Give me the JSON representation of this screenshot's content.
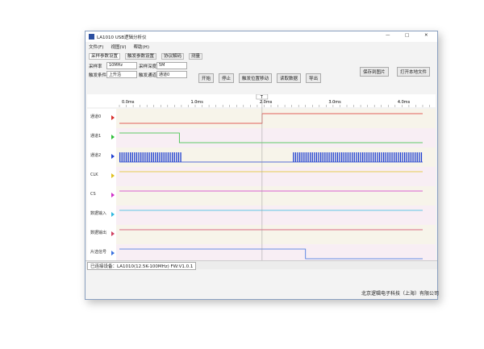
{
  "window": {
    "title": "LA1010 USB逻辑分析仪",
    "controls": [
      "—",
      "□",
      "✕"
    ]
  },
  "menu": [
    "文件(F)",
    "视图(V)",
    "帮助(H)"
  ],
  "toolbar": {
    "tabs": [
      "采样参数设置",
      "触发参数设置",
      "协议解码",
      "测量"
    ],
    "fields": [
      {
        "label": "采样率",
        "value": "10MHz"
      },
      {
        "label": "采样深度",
        "value": "5M"
      },
      {
        "label": "触发条件",
        "value": "上升沿"
      },
      {
        "label": "触发通道",
        "value": "通道0"
      }
    ],
    "buttons": [
      "开始",
      "停止",
      "触发位置移动",
      "读取数据",
      "导出"
    ],
    "right_buttons": [
      "保存到图片",
      "打开本地文件"
    ]
  },
  "timeline": {
    "labels": [
      "0.0ms",
      "1.0ms",
      "2.0ms",
      "3.0ms",
      "4.0ms"
    ],
    "cursor": "T"
  },
  "channels": [
    {
      "name": "通道0",
      "color": "#d9302c"
    },
    {
      "name": "通道1",
      "color": "#2fbf3a"
    },
    {
      "name": "通道2",
      "color": "#1f3fd0"
    },
    {
      "name": "CLK",
      "color": "#e0c020"
    },
    {
      "name": "CS",
      "color": "#d030c8"
    },
    {
      "name": "数据输入",
      "color": "#30b8e0"
    },
    {
      "name": "数据输出",
      "color": "#d04060"
    },
    {
      "name": "片选信号",
      "color": "#3a70e0"
    }
  ],
  "status": {
    "tab": "已连接设备：LA1010(12.5K-100MHz) FW:V1.0.1",
    "company": "北京逻辑电子科技（上海）有限公司"
  }
}
